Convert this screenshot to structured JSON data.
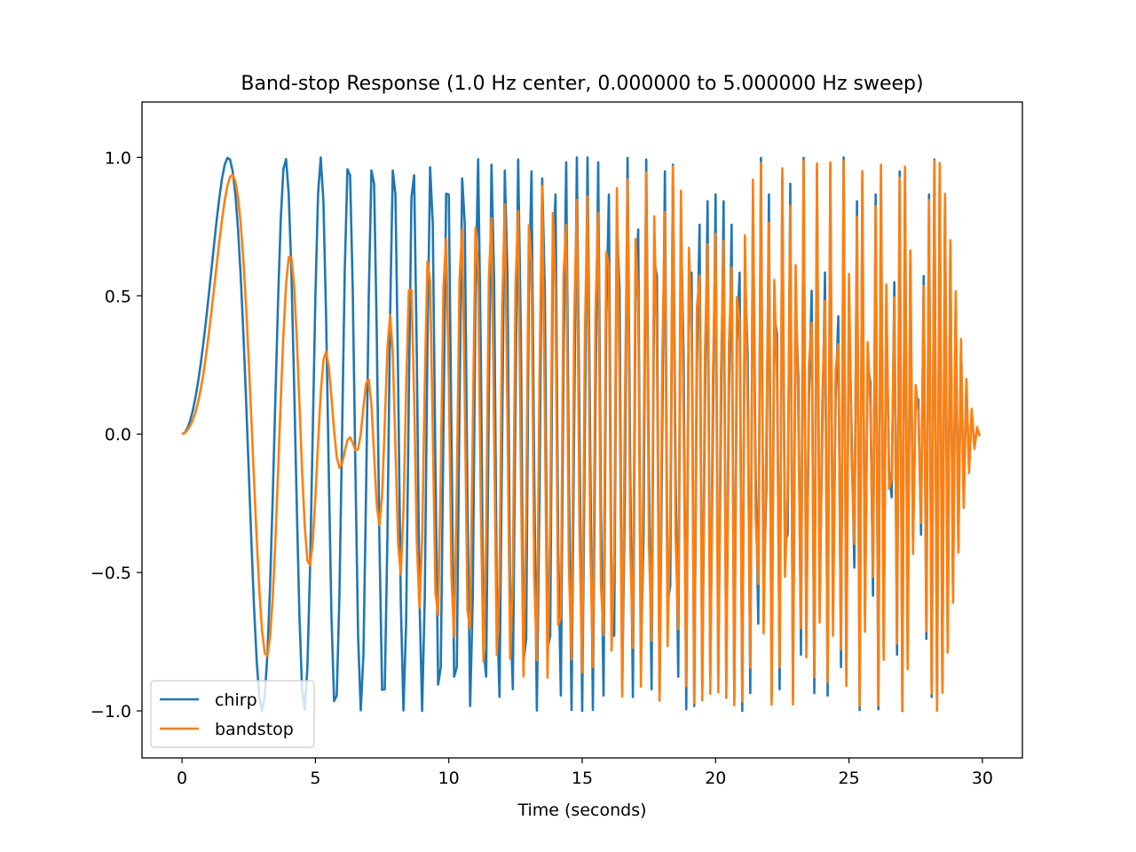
{
  "chart_data": {
    "type": "line",
    "title": "Band-stop Response (1.0 Hz center, 0.000000 to 5.000000 Hz sweep)",
    "xlabel": "Time (seconds)",
    "ylabel": "",
    "xlim": [
      -1.5,
      31.5
    ],
    "ylim": [
      -1.17,
      1.2
    ],
    "xticks": [
      0,
      5,
      10,
      15,
      20,
      25,
      30
    ],
    "xtick_labels": [
      "0",
      "5",
      "10",
      "15",
      "20",
      "25",
      "30"
    ],
    "yticks": [
      -1.0,
      -0.5,
      0.0,
      0.5,
      1.0
    ],
    "ytick_labels": [
      "−1.0",
      "−0.5",
      "0.0",
      "0.5",
      "1.0"
    ],
    "grid": false,
    "legend_position": "lower-left",
    "sampling": {
      "fs_hz": 10,
      "t_start": 0,
      "t_end": 29.9,
      "n_samples": 300
    },
    "series": [
      {
        "name": "chirp",
        "color": "#1f77b4",
        "signal": {
          "kind": "linear-chirp",
          "f0_hz": 0.0,
          "f1_hz": 5.0,
          "t1_s": 30,
          "phase_deg": -90
        }
      },
      {
        "name": "bandstop",
        "color": "#ff7f0e",
        "signal": {
          "kind": "bandstop-filtered-chirp",
          "center_hz": 1.0
        }
      }
    ]
  }
}
